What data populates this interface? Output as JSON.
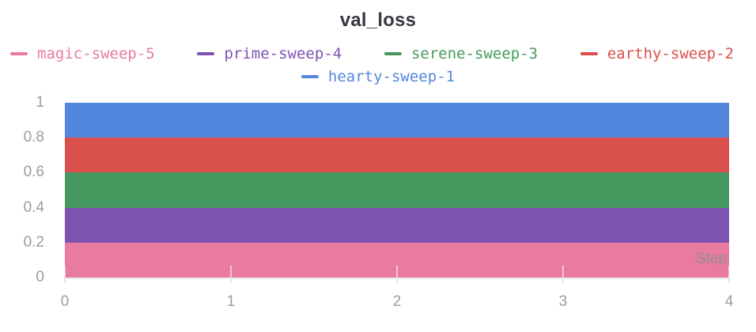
{
  "chart_data": {
    "type": "area",
    "title": "val_loss",
    "xlabel": "Step",
    "ylabel": "",
    "xlim": [
      0,
      4
    ],
    "ylim": [
      0,
      1
    ],
    "x": [
      0,
      1,
      2,
      3,
      4
    ],
    "xticks": [
      0,
      1,
      2,
      3,
      4
    ],
    "xtick_labels": [
      "0",
      "1",
      "2",
      "3",
      "4"
    ],
    "yticks": [
      0,
      0.2,
      0.4,
      0.6,
      0.8,
      1
    ],
    "ytick_labels": [
      "0",
      "0.2",
      "0.4",
      "0.6",
      "0.8",
      "1"
    ],
    "grid": false,
    "legend_position": "top",
    "series": [
      {
        "name": "magic-sweep-5",
        "color": "#e87b9f",
        "band": [
          0.0,
          0.2
        ],
        "values": [
          0.2,
          0.2,
          0.2,
          0.2,
          0.2
        ]
      },
      {
        "name": "prime-sweep-4",
        "color": "#7d54b2",
        "band": [
          0.2,
          0.4
        ],
        "values": [
          0.2,
          0.2,
          0.2,
          0.2,
          0.2
        ]
      },
      {
        "name": "serene-sweep-3",
        "color": "#479a5f",
        "band": [
          0.4,
          0.6
        ],
        "values": [
          0.2,
          0.2,
          0.2,
          0.2,
          0.2
        ]
      },
      {
        "name": "earthy-sweep-2",
        "color": "#d9504c",
        "band": [
          0.6,
          0.8
        ],
        "values": [
          0.2,
          0.2,
          0.2,
          0.2,
          0.2
        ]
      },
      {
        "name": "hearty-sweep-1",
        "color": "#5387dd",
        "band": [
          0.8,
          1.0
        ],
        "values": [
          0.2,
          0.2,
          0.2,
          0.2,
          0.2
        ]
      }
    ]
  },
  "legend": {
    "rows": [
      [
        {
          "label": "magic-sweep-5",
          "color": "#e87b9f"
        },
        {
          "label": "prime-sweep-4",
          "color": "#7d54b2"
        },
        {
          "label": "serene-sweep-3",
          "color": "#479a5f"
        },
        {
          "label": "earthy-sweep-2",
          "color": "#d9504c"
        }
      ],
      [
        {
          "label": "hearty-sweep-1",
          "color": "#5387dd"
        }
      ]
    ]
  },
  "colors": {
    "title_text": "#363a40",
    "tick_text": "#9b9ca3",
    "axis_line": "#e9e9ec",
    "background": "#ffffff"
  }
}
